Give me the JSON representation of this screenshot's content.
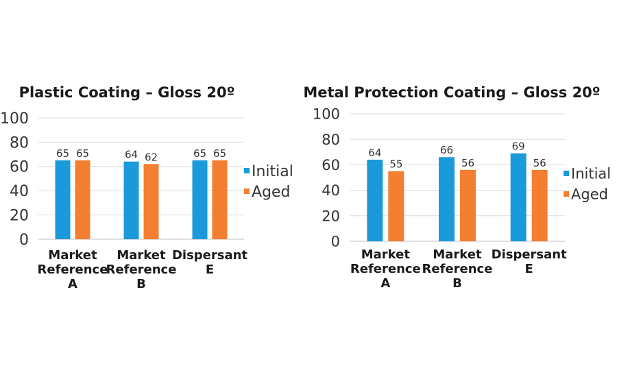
{
  "chart_data": [
    {
      "type": "bar",
      "title": "Plastic Coating – Gloss 20º",
      "categories": [
        [
          "Market",
          "Reference",
          "A"
        ],
        [
          "Market",
          "Reference",
          "B"
        ],
        [
          "Dispersant",
          "E"
        ]
      ],
      "series": [
        {
          "name": "Initial",
          "color": "#1B9ADB",
          "values": [
            65,
            64,
            65
          ]
        },
        {
          "name": "Aged",
          "color": "#F47F30",
          "values": [
            65,
            62,
            65
          ]
        }
      ],
      "ylim": [
        0,
        100
      ],
      "yticks": [
        0,
        20,
        40,
        60,
        80,
        100
      ],
      "grid": true,
      "legend": "right"
    },
    {
      "type": "bar",
      "title": "Metal Protection Coating – Gloss 20º",
      "categories": [
        [
          "Market",
          "Reference",
          "A"
        ],
        [
          "Market",
          "Reference",
          "B"
        ],
        [
          "Dispersant",
          "E"
        ]
      ],
      "series": [
        {
          "name": "Initial",
          "color": "#1B9ADB",
          "values": [
            64,
            66,
            69
          ]
        },
        {
          "name": "Aged",
          "color": "#F47F30",
          "values": [
            55,
            56,
            56
          ]
        }
      ],
      "ylim": [
        0,
        100
      ],
      "yticks": [
        0,
        20,
        40,
        60,
        80,
        100
      ],
      "grid": true,
      "legend": "right"
    }
  ]
}
